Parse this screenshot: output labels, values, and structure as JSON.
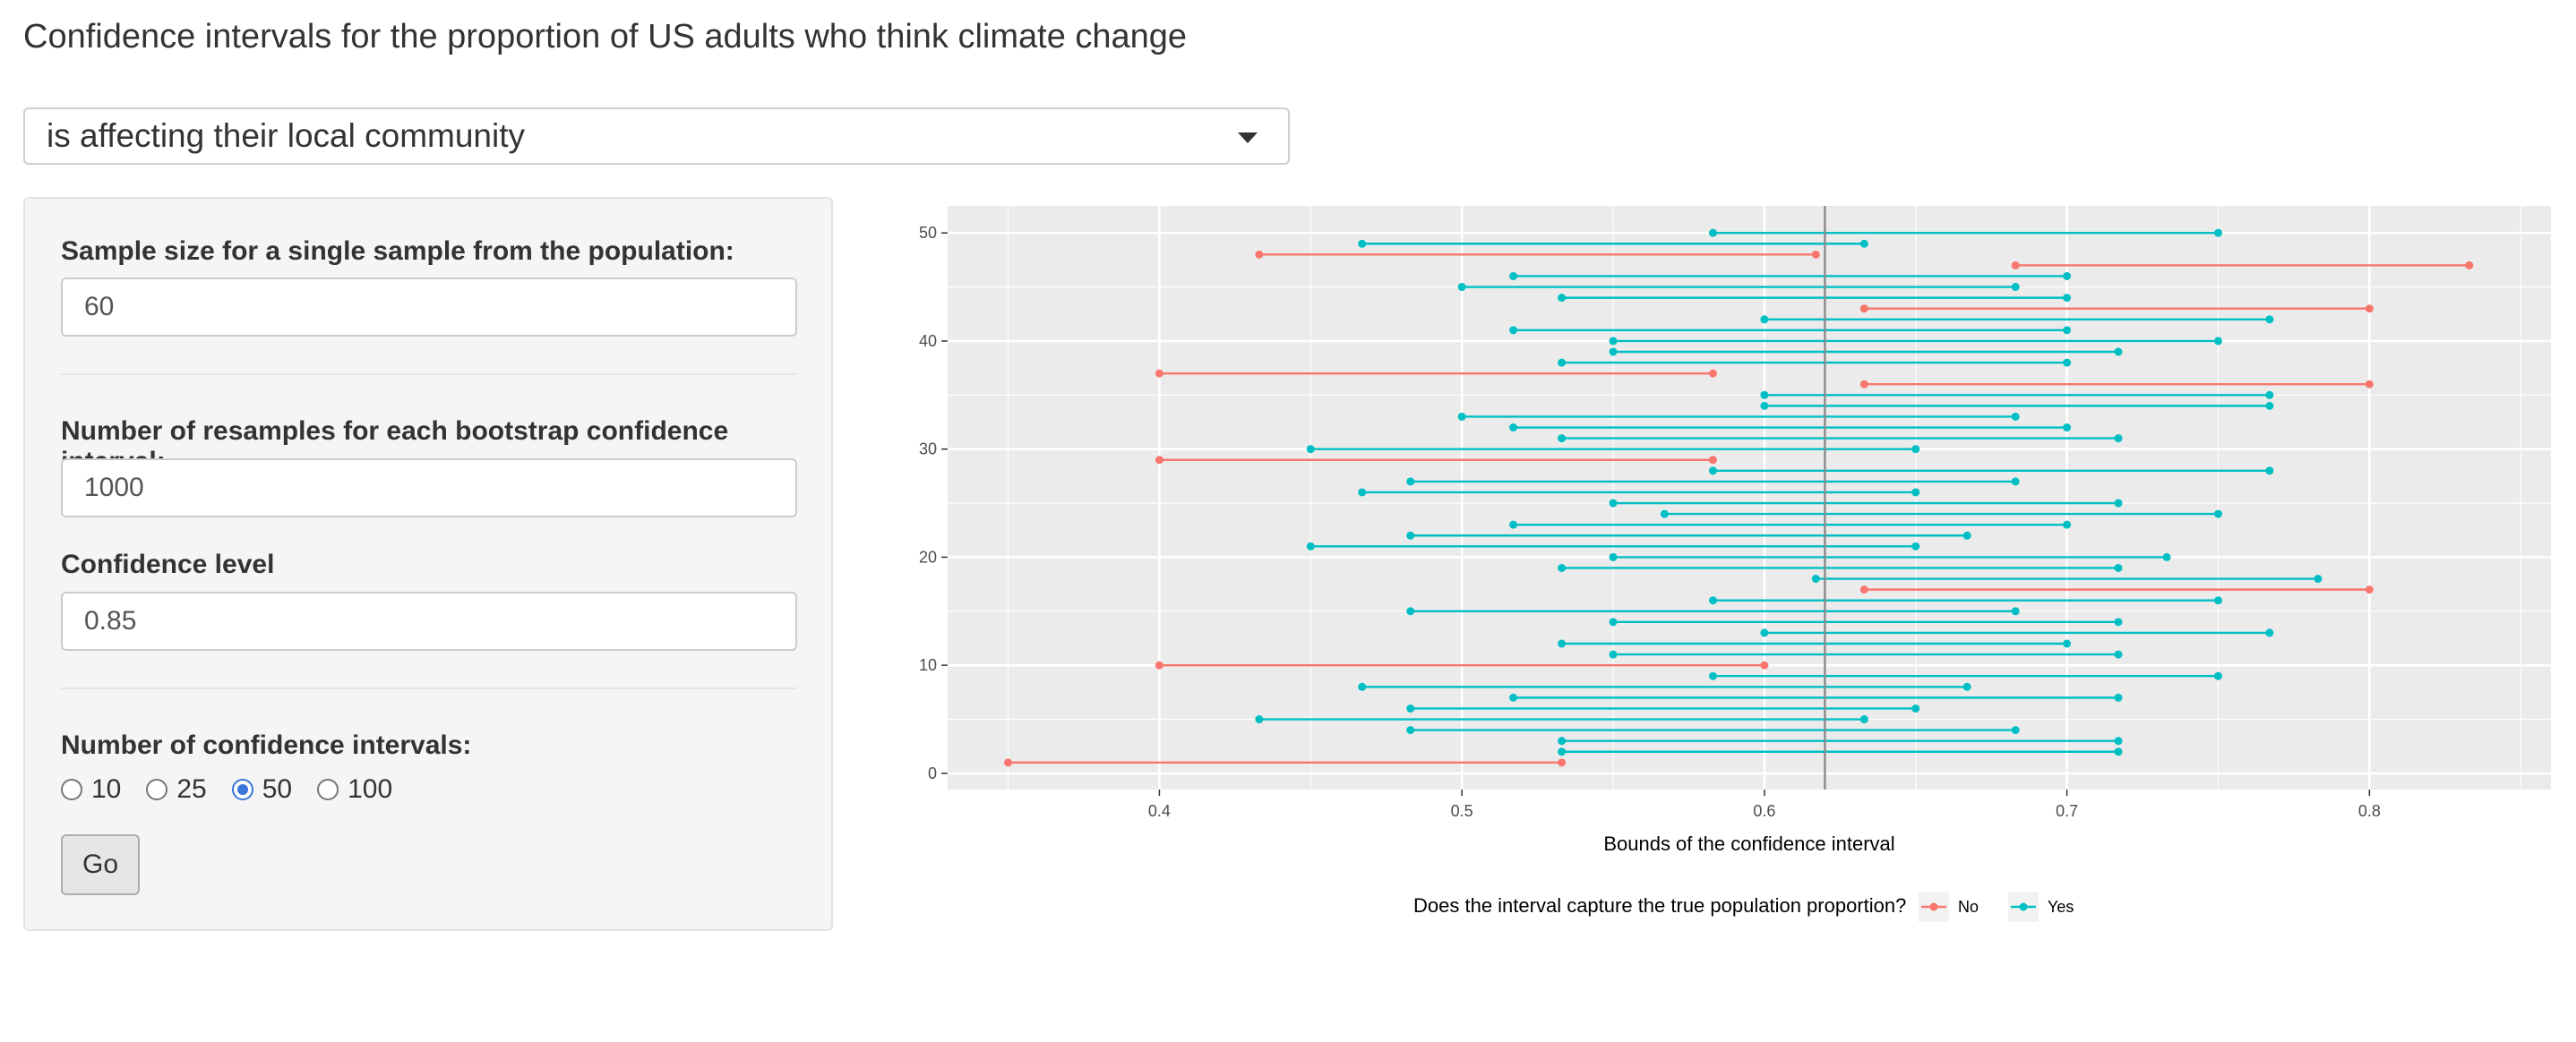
{
  "page": {
    "title": "Confidence intervals for the proportion of US adults who think climate change"
  },
  "question_select": {
    "value": "is affecting their local community"
  },
  "sidebar": {
    "sample_size": {
      "label": "Sample size for a single sample from the population:",
      "value": "60"
    },
    "resamples": {
      "label": "Number of resamples for each bootstrap confidence interval:",
      "value": "1000"
    },
    "confidence": {
      "label": "Confidence level",
      "value": "0.85"
    },
    "num_intervals": {
      "label": "Number of confidence intervals:",
      "options": [
        "10",
        "25",
        "50",
        "100"
      ],
      "selected": "50"
    },
    "go_label": "Go"
  },
  "chart_data": {
    "type": "interval",
    "xlabel": "Bounds of the confidence interval",
    "ylabel": "",
    "xlim": [
      0.33,
      0.86
    ],
    "ylim": [
      -1.5,
      52.5
    ],
    "x_ticks": [
      0.4,
      0.5,
      0.6,
      0.7,
      0.8
    ],
    "x_tick_labels": [
      "0.4",
      "0.5",
      "0.6",
      "0.7",
      "0.8"
    ],
    "y_ticks": [
      0,
      10,
      20,
      30,
      40,
      50
    ],
    "y_tick_labels": [
      "0",
      "10",
      "20",
      "30",
      "40",
      "50"
    ],
    "true_proportion": 0.62,
    "grid": true,
    "legend": {
      "title": "Does the interval capture the true population proportion?",
      "position": "bottom",
      "entries": [
        {
          "name": "No",
          "color": "#F8766D"
        },
        {
          "name": "Yes",
          "color": "#00BFC4"
        }
      ]
    },
    "intervals": [
      {
        "index": 1,
        "lower": 0.35,
        "upper": 0.533,
        "captured": "No"
      },
      {
        "index": 2,
        "lower": 0.533,
        "upper": 0.717,
        "captured": "Yes"
      },
      {
        "index": 3,
        "lower": 0.533,
        "upper": 0.717,
        "captured": "Yes"
      },
      {
        "index": 4,
        "lower": 0.483,
        "upper": 0.683,
        "captured": "Yes"
      },
      {
        "index": 5,
        "lower": 0.433,
        "upper": 0.633,
        "captured": "Yes"
      },
      {
        "index": 6,
        "lower": 0.483,
        "upper": 0.65,
        "captured": "Yes"
      },
      {
        "index": 7,
        "lower": 0.517,
        "upper": 0.717,
        "captured": "Yes"
      },
      {
        "index": 8,
        "lower": 0.467,
        "upper": 0.667,
        "captured": "Yes"
      },
      {
        "index": 9,
        "lower": 0.583,
        "upper": 0.75,
        "captured": "Yes"
      },
      {
        "index": 10,
        "lower": 0.4,
        "upper": 0.6,
        "captured": "No"
      },
      {
        "index": 11,
        "lower": 0.55,
        "upper": 0.717,
        "captured": "Yes"
      },
      {
        "index": 12,
        "lower": 0.533,
        "upper": 0.7,
        "captured": "Yes"
      },
      {
        "index": 13,
        "lower": 0.6,
        "upper": 0.767,
        "captured": "Yes"
      },
      {
        "index": 14,
        "lower": 0.55,
        "upper": 0.717,
        "captured": "Yes"
      },
      {
        "index": 15,
        "lower": 0.483,
        "upper": 0.683,
        "captured": "Yes"
      },
      {
        "index": 16,
        "lower": 0.583,
        "upper": 0.75,
        "captured": "Yes"
      },
      {
        "index": 17,
        "lower": 0.633,
        "upper": 0.8,
        "captured": "No"
      },
      {
        "index": 18,
        "lower": 0.617,
        "upper": 0.783,
        "captured": "Yes"
      },
      {
        "index": 19,
        "lower": 0.533,
        "upper": 0.717,
        "captured": "Yes"
      },
      {
        "index": 20,
        "lower": 0.55,
        "upper": 0.733,
        "captured": "Yes"
      },
      {
        "index": 21,
        "lower": 0.45,
        "upper": 0.65,
        "captured": "Yes"
      },
      {
        "index": 22,
        "lower": 0.483,
        "upper": 0.667,
        "captured": "Yes"
      },
      {
        "index": 23,
        "lower": 0.517,
        "upper": 0.7,
        "captured": "Yes"
      },
      {
        "index": 24,
        "lower": 0.567,
        "upper": 0.75,
        "captured": "Yes"
      },
      {
        "index": 25,
        "lower": 0.55,
        "upper": 0.717,
        "captured": "Yes"
      },
      {
        "index": 26,
        "lower": 0.467,
        "upper": 0.65,
        "captured": "Yes"
      },
      {
        "index": 27,
        "lower": 0.483,
        "upper": 0.683,
        "captured": "Yes"
      },
      {
        "index": 28,
        "lower": 0.583,
        "upper": 0.767,
        "captured": "Yes"
      },
      {
        "index": 29,
        "lower": 0.4,
        "upper": 0.583,
        "captured": "No"
      },
      {
        "index": 30,
        "lower": 0.45,
        "upper": 0.65,
        "captured": "Yes"
      },
      {
        "index": 31,
        "lower": 0.533,
        "upper": 0.717,
        "captured": "Yes"
      },
      {
        "index": 32,
        "lower": 0.517,
        "upper": 0.7,
        "captured": "Yes"
      },
      {
        "index": 33,
        "lower": 0.5,
        "upper": 0.683,
        "captured": "Yes"
      },
      {
        "index": 34,
        "lower": 0.6,
        "upper": 0.767,
        "captured": "Yes"
      },
      {
        "index": 35,
        "lower": 0.6,
        "upper": 0.767,
        "captured": "Yes"
      },
      {
        "index": 36,
        "lower": 0.633,
        "upper": 0.8,
        "captured": "No"
      },
      {
        "index": 37,
        "lower": 0.4,
        "upper": 0.583,
        "captured": "No"
      },
      {
        "index": 38,
        "lower": 0.533,
        "upper": 0.7,
        "captured": "Yes"
      },
      {
        "index": 39,
        "lower": 0.55,
        "upper": 0.717,
        "captured": "Yes"
      },
      {
        "index": 40,
        "lower": 0.55,
        "upper": 0.75,
        "captured": "Yes"
      },
      {
        "index": 41,
        "lower": 0.517,
        "upper": 0.7,
        "captured": "Yes"
      },
      {
        "index": 42,
        "lower": 0.6,
        "upper": 0.767,
        "captured": "Yes"
      },
      {
        "index": 43,
        "lower": 0.633,
        "upper": 0.8,
        "captured": "No"
      },
      {
        "index": 44,
        "lower": 0.533,
        "upper": 0.7,
        "captured": "Yes"
      },
      {
        "index": 45,
        "lower": 0.5,
        "upper": 0.683,
        "captured": "Yes"
      },
      {
        "index": 46,
        "lower": 0.517,
        "upper": 0.7,
        "captured": "Yes"
      },
      {
        "index": 47,
        "lower": 0.683,
        "upper": 0.833,
        "captured": "No"
      },
      {
        "index": 48,
        "lower": 0.433,
        "upper": 0.617,
        "captured": "No"
      },
      {
        "index": 49,
        "lower": 0.467,
        "upper": 0.633,
        "captured": "Yes"
      },
      {
        "index": 50,
        "lower": 0.583,
        "upper": 0.75,
        "captured": "Yes"
      }
    ]
  }
}
